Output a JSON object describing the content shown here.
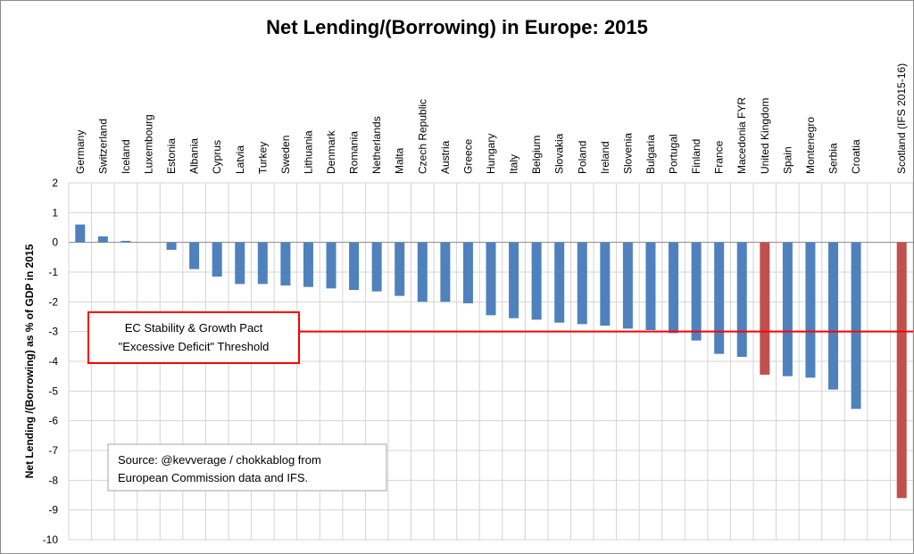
{
  "chart_data": {
    "type": "bar",
    "title": "Net Lending/(Borrowing) in Europe: 2015",
    "ylabel": "Net Lending /(Borrowing) as % of GDP in 2015",
    "xlabel": "",
    "ylim": [
      -10,
      2
    ],
    "yticks": [
      2,
      1,
      0,
      -1,
      -2,
      -3,
      -4,
      -5,
      -6,
      -7,
      -8,
      -9,
      -10
    ],
    "grid": true,
    "categories": [
      "Germany",
      "Switzerland",
      "Iceland",
      "Luxembourg",
      "Estonia",
      "Albania",
      "Cyprus",
      "Latvia",
      "Turkey",
      "Sweden",
      "Lithuania",
      "Denmark",
      "Romania",
      "Netherlands",
      "Malta",
      "Czech Republic",
      "Austria",
      "Greece",
      "Hungary",
      "Italy",
      "Belgium",
      "Slovakia",
      "Poland",
      "Ireland",
      "Slovenia",
      "Bulgaria",
      "Portugal",
      "Finland",
      "France",
      "Macedonia FYR",
      "United Kingdom",
      "Spain",
      "Montenegro",
      "Serbia",
      "Croatia",
      "",
      "Scotland (IFS 2015-16)"
    ],
    "values": [
      0.6,
      0.2,
      0.05,
      0,
      -0.25,
      -0.9,
      -1.15,
      -1.4,
      -1.4,
      -1.45,
      -1.5,
      -1.55,
      -1.6,
      -1.65,
      -1.8,
      -2.0,
      -2.0,
      -2.05,
      -2.45,
      -2.55,
      -2.6,
      -2.7,
      -2.75,
      -2.8,
      -2.9,
      -2.95,
      -3.05,
      -3.3,
      -3.75,
      -3.85,
      -4.45,
      -4.5,
      -4.55,
      -4.95,
      -5.6,
      null,
      -8.6
    ],
    "colors": [
      "#4f81bd",
      "#4f81bd",
      "#4f81bd",
      "#4f81bd",
      "#4f81bd",
      "#4f81bd",
      "#4f81bd",
      "#4f81bd",
      "#4f81bd",
      "#4f81bd",
      "#4f81bd",
      "#4f81bd",
      "#4f81bd",
      "#4f81bd",
      "#4f81bd",
      "#4f81bd",
      "#4f81bd",
      "#4f81bd",
      "#4f81bd",
      "#4f81bd",
      "#4f81bd",
      "#4f81bd",
      "#4f81bd",
      "#4f81bd",
      "#4f81bd",
      "#4f81bd",
      "#4f81bd",
      "#4f81bd",
      "#4f81bd",
      "#4f81bd",
      "#c0504d",
      "#4f81bd",
      "#4f81bd",
      "#4f81bd",
      "#4f81bd",
      "#4f81bd",
      "#c0504d"
    ],
    "threshold": {
      "value": -3,
      "color": "#ff0000",
      "label_lines": [
        "EC Stability & Growth Pact",
        "\"Excessive Deficit\" Threshold"
      ]
    },
    "source_lines": [
      "Source: @kevverage / chokkablog from",
      "European Commission data and IFS."
    ]
  }
}
